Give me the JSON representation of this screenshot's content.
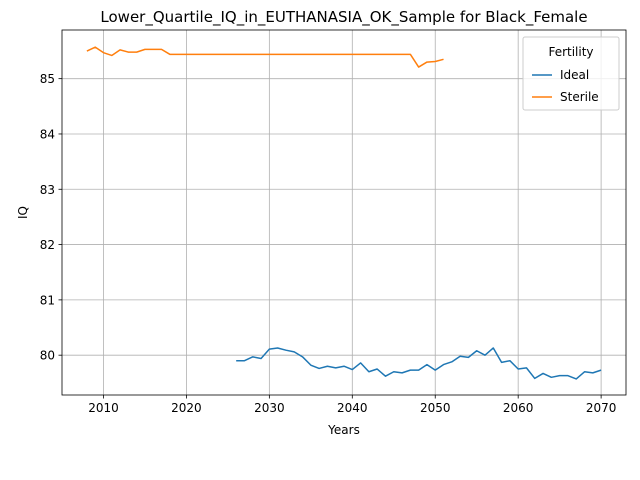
{
  "chart_data": {
    "type": "line",
    "title": "Lower_Quartile_IQ_in_EUTHANASIA_OK_Sample for Black_Female",
    "xlabel": "Years",
    "ylabel": "IQ",
    "xlim": [
      2005,
      2073
    ],
    "ylim": [
      79.28,
      85.88
    ],
    "x_ticks": [
      2010,
      2020,
      2030,
      2040,
      2050,
      2060,
      2070
    ],
    "y_ticks": [
      80,
      81,
      82,
      83,
      84,
      85
    ],
    "grid": true,
    "legend": {
      "title": "Fertility",
      "placement": "top-right"
    },
    "series": [
      {
        "name": "Ideal",
        "color": "#1f77b4",
        "x": [
          2026,
          2027,
          2028,
          2029,
          2030,
          2031,
          2032,
          2033,
          2034,
          2035,
          2036,
          2037,
          2038,
          2039,
          2040,
          2041,
          2042,
          2043,
          2044,
          2045,
          2046,
          2047,
          2048,
          2049,
          2050,
          2051,
          2052,
          2053,
          2054,
          2055,
          2056,
          2057,
          2058,
          2059,
          2060,
          2061,
          2062,
          2063,
          2064,
          2065,
          2066,
          2067,
          2068,
          2069,
          2070
        ],
        "values": [
          79.9,
          79.9,
          79.97,
          79.94,
          80.11,
          80.13,
          80.09,
          80.06,
          79.97,
          79.82,
          79.76,
          79.8,
          79.77,
          79.8,
          79.74,
          79.86,
          79.7,
          79.75,
          79.62,
          79.7,
          79.68,
          79.73,
          79.73,
          79.83,
          79.73,
          79.83,
          79.88,
          79.98,
          79.96,
          80.08,
          80.0,
          80.13,
          79.87,
          79.9,
          79.75,
          79.77,
          79.58,
          79.67,
          79.6,
          79.63,
          79.63,
          79.57,
          79.7,
          79.68,
          79.73
        ]
      },
      {
        "name": "Sterile",
        "color": "#ff7f0e",
        "x": [
          2008,
          2009,
          2010,
          2011,
          2012,
          2013,
          2014,
          2015,
          2016,
          2017,
          2018,
          2019,
          2020,
          2021,
          2022,
          2023,
          2024,
          2025,
          2026,
          2027,
          2028,
          2029,
          2030,
          2031,
          2032,
          2033,
          2034,
          2035,
          2036,
          2037,
          2038,
          2039,
          2040,
          2041,
          2042,
          2043,
          2044,
          2045,
          2046,
          2047,
          2048,
          2049,
          2050,
          2051
        ],
        "values": [
          85.5,
          85.57,
          85.47,
          85.42,
          85.52,
          85.48,
          85.48,
          85.53,
          85.53,
          85.53,
          85.44,
          85.44,
          85.44,
          85.44,
          85.44,
          85.44,
          85.44,
          85.44,
          85.44,
          85.44,
          85.44,
          85.44,
          85.44,
          85.44,
          85.44,
          85.44,
          85.44,
          85.44,
          85.44,
          85.44,
          85.44,
          85.44,
          85.44,
          85.44,
          85.44,
          85.44,
          85.44,
          85.44,
          85.44,
          85.44,
          85.21,
          85.3,
          85.31,
          85.35
        ]
      }
    ]
  }
}
